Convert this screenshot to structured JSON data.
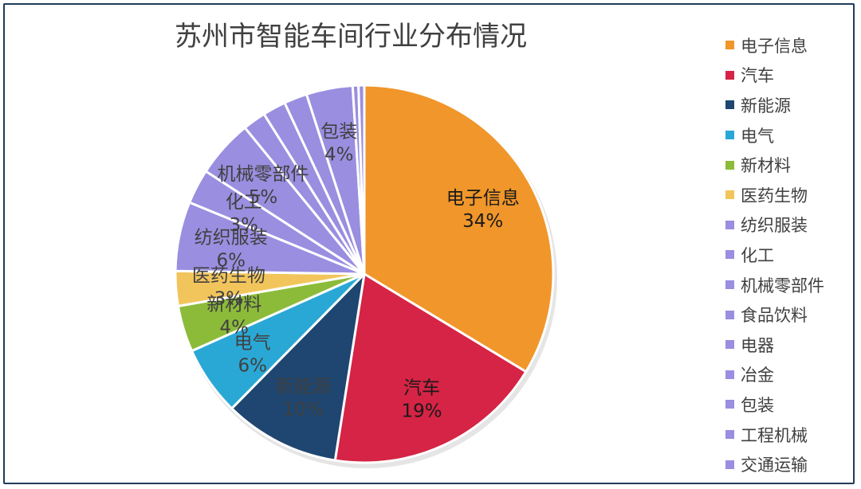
{
  "chart_data": {
    "type": "pie",
    "title": "苏州市智能车间行业分布情况",
    "legend_position": "right",
    "slices": [
      {
        "label": "电子信息",
        "value": 34,
        "value_label": "34%",
        "color": "#f0962a",
        "show_label": true
      },
      {
        "label": "汽车",
        "value": 19,
        "value_label": "19%",
        "color": "#d52445",
        "show_label": true
      },
      {
        "label": "新能源",
        "value": 10,
        "value_label": "10%",
        "color": "#1e4670",
        "show_label": true
      },
      {
        "label": "电气",
        "value": 6,
        "value_label": "6%",
        "color": "#2aa8d5",
        "show_label": true
      },
      {
        "label": "新材料",
        "value": 4,
        "value_label": "4%",
        "color": "#8cbb3a",
        "show_label": true
      },
      {
        "label": "医药生物",
        "value": 3,
        "value_label": "3%",
        "color": "#f2c55c",
        "show_label": true
      },
      {
        "label": "纺织服装",
        "value": 6,
        "value_label": "6%",
        "color": "#9a8ee0",
        "show_label": true
      },
      {
        "label": "化工",
        "value": 3,
        "value_label": "3%",
        "color": "#9a8ee0",
        "show_label": true
      },
      {
        "label": "机械零部件",
        "value": 5,
        "value_label": "5%",
        "color": "#9a8ee0",
        "show_label": true
      },
      {
        "label": "食品饮料",
        "value": 2,
        "value_label": "",
        "color": "#9a8ee0",
        "show_label": false
      },
      {
        "label": "电器",
        "value": 2,
        "value_label": "",
        "color": "#9a8ee0",
        "show_label": false
      },
      {
        "label": "冶金",
        "value": 2,
        "value_label": "",
        "color": "#9a8ee0",
        "show_label": false
      },
      {
        "label": "包装",
        "value": 4,
        "value_label": "4%",
        "color": "#9a8ee0",
        "show_label": true
      },
      {
        "label": "工程机械",
        "value": 0.5,
        "value_label": "",
        "color": "#9a8ee0",
        "show_label": false
      },
      {
        "label": "交通运输",
        "value": 0.5,
        "value_label": "",
        "color": "#9a8ee0",
        "show_label": false
      }
    ],
    "slice_label_colors": {
      "电子信息": "#1a1a1a",
      "汽车": "#1a1a1a",
      "新能源": "#404040",
      "电气": "#404040",
      "新材料": "#404040",
      "医药生物": "#404040",
      "纺织服装": "#404040",
      "化工": "#404040",
      "机械零部件": "#404040",
      "包装": "#404040"
    }
  }
}
